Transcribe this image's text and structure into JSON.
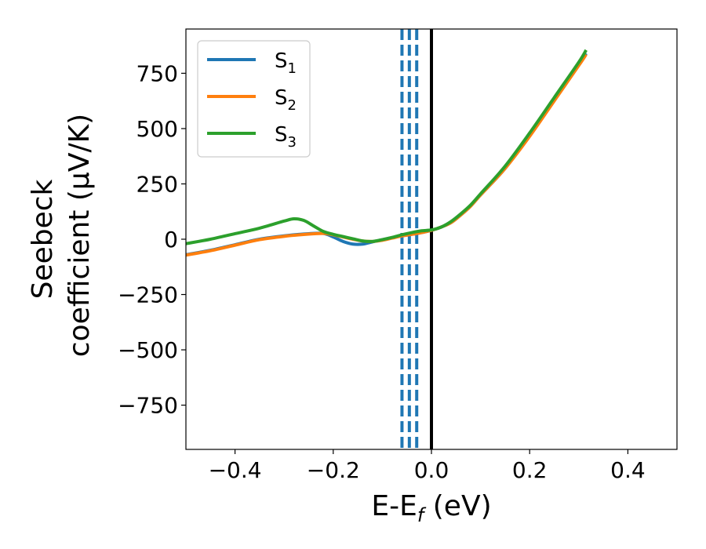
{
  "chart_data": {
    "type": "line",
    "xlabel": {
      "main": "E-E",
      "sub": "f",
      "unit": " (eV)"
    },
    "ylabel": {
      "line1": "Seebeck",
      "line2": "coefficient  (μV/K)"
    },
    "xlim": [
      -0.5,
      0.5
    ],
    "ylim": [
      -950,
      950
    ],
    "x_ticks": [
      -0.4,
      -0.2,
      0.0,
      0.2,
      0.4
    ],
    "x_tick_labels": [
      "−0.4",
      "−0.2",
      "0.0",
      "0.2",
      "0.4"
    ],
    "y_ticks": [
      750,
      500,
      250,
      0,
      -250,
      -500,
      -750
    ],
    "y_tick_labels": [
      "750",
      "500",
      "250",
      "0",
      "−250",
      "−500",
      "−750"
    ],
    "legend_position": "top-left",
    "series": [
      {
        "name": {
          "main": "S",
          "sub": "1"
        },
        "color": "#1f77b4",
        "x": [
          -0.5,
          -0.45,
          -0.4,
          -0.35,
          -0.3,
          -0.25,
          -0.22,
          -0.2,
          -0.18,
          -0.16,
          -0.14,
          -0.12,
          -0.1,
          -0.08,
          -0.06,
          -0.04,
          -0.02,
          0.0,
          0.02,
          0.04,
          0.06,
          0.08,
          0.1,
          0.15,
          0.2,
          0.25,
          0.3,
          0.315
        ],
        "y": [
          -70,
          -50,
          -25,
          0,
          15,
          25,
          26,
          10,
          -10,
          -22,
          -22,
          -12,
          -2,
          7,
          15,
          22,
          30,
          40,
          55,
          75,
          110,
          150,
          200,
          320,
          470,
          630,
          790,
          840
        ]
      },
      {
        "name": {
          "main": "S",
          "sub": "2"
        },
        "color": "#ff7f0e",
        "x": [
          -0.5,
          -0.45,
          -0.4,
          -0.35,
          -0.3,
          -0.25,
          -0.22,
          -0.2,
          -0.18,
          -0.16,
          -0.14,
          -0.12,
          -0.1,
          -0.08,
          -0.06,
          -0.04,
          -0.02,
          0.0,
          0.02,
          0.04,
          0.06,
          0.08,
          0.1,
          0.15,
          0.2,
          0.25,
          0.3,
          0.315
        ],
        "y": [
          -72,
          -52,
          -27,
          -2,
          13,
          23,
          26,
          20,
          10,
          0,
          -8,
          -10,
          -5,
          5,
          15,
          22,
          30,
          40,
          55,
          75,
          110,
          150,
          200,
          320,
          465,
          625,
          785,
          835
        ]
      },
      {
        "name": {
          "main": "S",
          "sub": "3"
        },
        "color": "#2ca02c",
        "x": [
          -0.5,
          -0.45,
          -0.4,
          -0.35,
          -0.3,
          -0.28,
          -0.26,
          -0.24,
          -0.22,
          -0.2,
          -0.18,
          -0.16,
          -0.14,
          -0.12,
          -0.1,
          -0.08,
          -0.06,
          -0.04,
          -0.02,
          0.0,
          0.02,
          0.04,
          0.06,
          0.08,
          0.1,
          0.15,
          0.2,
          0.25,
          0.3,
          0.315
        ],
        "y": [
          -20,
          0,
          25,
          50,
          82,
          92,
          85,
          60,
          35,
          22,
          12,
          2,
          -8,
          -10,
          -2,
          8,
          20,
          30,
          38,
          42,
          55,
          80,
          115,
          155,
          205,
          330,
          480,
          640,
          800,
          855
        ]
      }
    ],
    "vertical_lines": [
      {
        "x": -0.06,
        "style": "dashed",
        "color": "#1f77b4"
      },
      {
        "x": -0.045,
        "style": "dashed",
        "color": "#1f77b4"
      },
      {
        "x": -0.03,
        "style": "dashed",
        "color": "#1f77b4"
      },
      {
        "x": 0.0,
        "style": "solid",
        "color": "#000000"
      }
    ]
  }
}
